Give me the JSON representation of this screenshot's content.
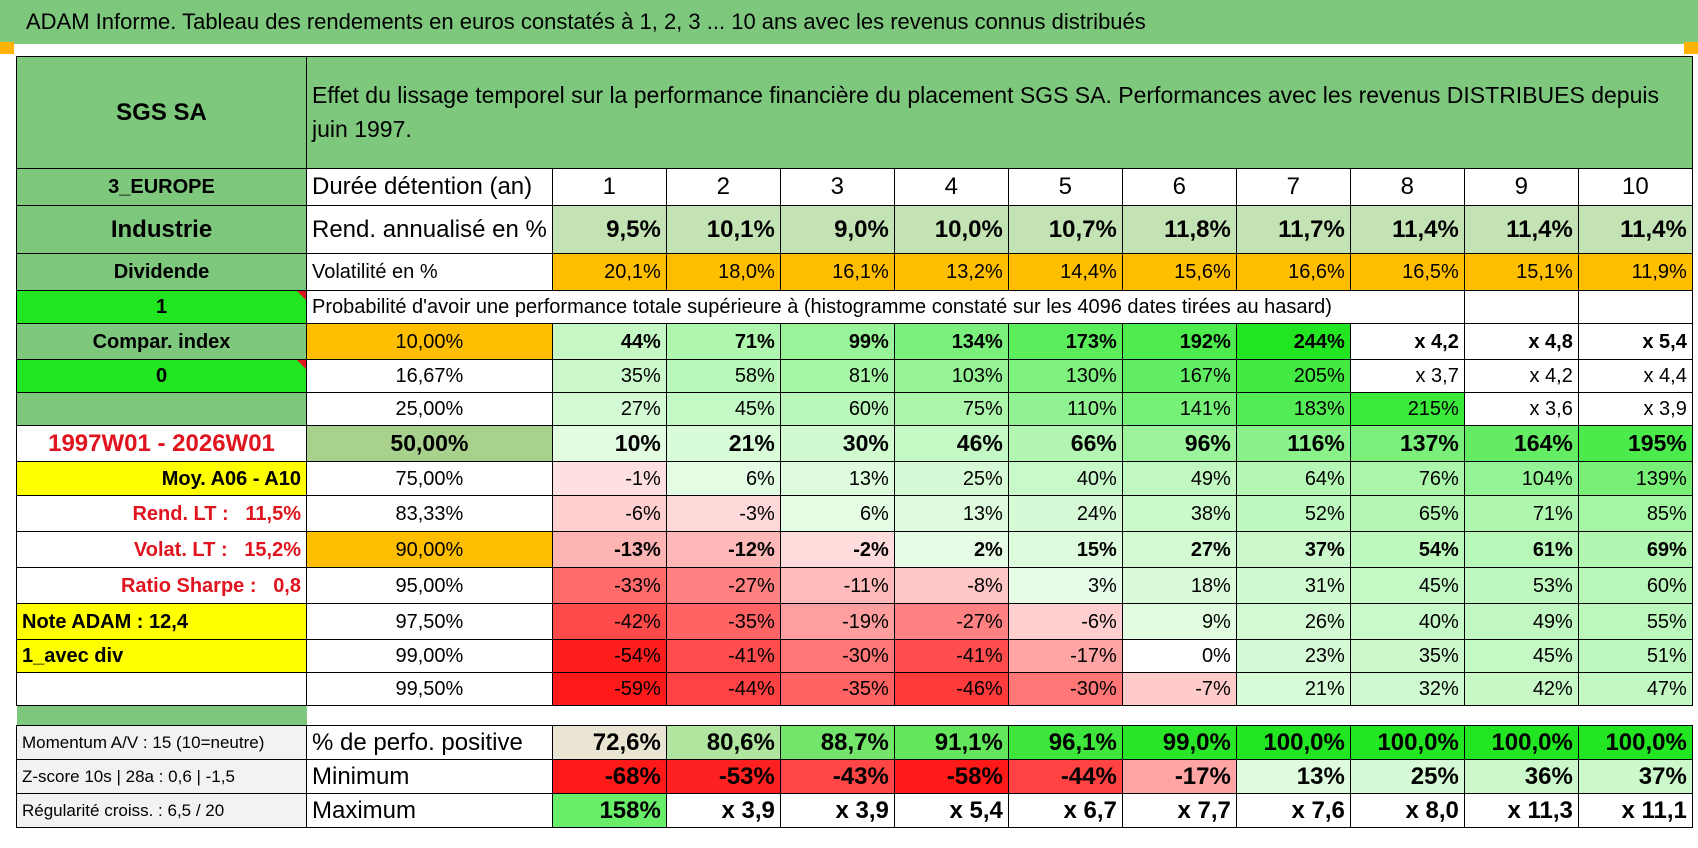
{
  "banner": {
    "title": "ADAM Informe. Tableau des rendements en euros constatés à 1, 2, 3 ... 10 ans avec les revenus connus distribués"
  },
  "colors": {
    "green_header": "#7ec87e",
    "bright_green": "#22e622",
    "yellow": "#ffff00",
    "orange": "#ffbf00",
    "red": "#ff0000"
  },
  "table": {
    "company": "SGS SA",
    "title": "Effet du lissage temporel sur la performance financière du placement SGS SA. Performances avec les revenus DISTRIBUES depuis juin 1997.",
    "region": "3_EUROPE",
    "sector": "Industrie",
    "type": "Dividende",
    "one": "1",
    "compar_index": "Compar. index",
    "zero": "0",
    "period": "1997W01 - 2026W01",
    "moy": "Moy. A06 - A10",
    "rend_lt_label": "Rend. LT :",
    "rend_lt_value": "11,5%",
    "volat_lt_label": "Volat. LT :",
    "volat_lt_value": "15,2%",
    "sharpe_label": "Ratio Sharpe :",
    "sharpe_value": "0,8",
    "note": "Note ADAM : 12,4",
    "avec_div": "1_avec div",
    "duration_label": "Durée détention (an)",
    "years": [
      "1",
      "2",
      "3",
      "4",
      "5",
      "6",
      "7",
      "8",
      "9",
      "10"
    ],
    "rend_label": "Rend. annualisé en %",
    "rend": [
      "9,5%",
      "10,1%",
      "9,0%",
      "10,0%",
      "10,7%",
      "11,8%",
      "11,7%",
      "11,4%",
      "11,4%",
      "11,4%"
    ],
    "vol_label": "Volatilité en %",
    "vol": [
      "20,1%",
      "18,0%",
      "16,1%",
      "13,2%",
      "14,4%",
      "15,6%",
      "16,6%",
      "16,5%",
      "15,1%",
      "11,9%"
    ],
    "prob_label": "Probabilité d'avoir une performance totale supérieure à (histogramme constaté sur les 4096 dates tirées au hasard)",
    "quantiles": [
      {
        "p": "10,00%",
        "v": [
          "44%",
          "71%",
          "99%",
          "134%",
          "173%",
          "192%",
          "244%",
          "x 4,2",
          "x 4,8",
          "x 5,4"
        ]
      },
      {
        "p": "16,67%",
        "v": [
          "35%",
          "58%",
          "81%",
          "103%",
          "130%",
          "167%",
          "205%",
          "x 3,7",
          "x 4,2",
          "x 4,4"
        ]
      },
      {
        "p": "25,00%",
        "v": [
          "27%",
          "45%",
          "60%",
          "75%",
          "110%",
          "141%",
          "183%",
          "215%",
          "x 3,6",
          "x 3,9"
        ]
      },
      {
        "p": "50,00%",
        "v": [
          "10%",
          "21%",
          "30%",
          "46%",
          "66%",
          "96%",
          "116%",
          "137%",
          "164%",
          "195%"
        ]
      },
      {
        "p": "75,00%",
        "v": [
          "-1%",
          "6%",
          "13%",
          "25%",
          "40%",
          "49%",
          "64%",
          "76%",
          "104%",
          "139%"
        ]
      },
      {
        "p": "83,33%",
        "v": [
          "-6%",
          "-3%",
          "6%",
          "13%",
          "24%",
          "38%",
          "52%",
          "65%",
          "71%",
          "85%"
        ]
      },
      {
        "p": "90,00%",
        "v": [
          "-13%",
          "-12%",
          "-2%",
          "2%",
          "15%",
          "27%",
          "37%",
          "54%",
          "61%",
          "69%"
        ]
      },
      {
        "p": "95,00%",
        "v": [
          "-33%",
          "-27%",
          "-11%",
          "-8%",
          "3%",
          "18%",
          "31%",
          "45%",
          "53%",
          "60%"
        ]
      },
      {
        "p": "97,50%",
        "v": [
          "-42%",
          "-35%",
          "-19%",
          "-27%",
          "-6%",
          "9%",
          "26%",
          "40%",
          "49%",
          "55%"
        ]
      },
      {
        "p": "99,00%",
        "v": [
          "-54%",
          "-41%",
          "-30%",
          "-41%",
          "-17%",
          "0%",
          "23%",
          "35%",
          "45%",
          "51%"
        ]
      },
      {
        "p": "99,50%",
        "v": [
          "-59%",
          "-44%",
          "-35%",
          "-46%",
          "-30%",
          "-7%",
          "21%",
          "32%",
          "42%",
          "47%"
        ]
      }
    ],
    "momentum": "Momentum A/V : 15 (10=neutre)",
    "zscore": "Z-score 10s | 28a : 0,6 | -1,5",
    "regularite": "Régularité croiss. : 6,5 / 20",
    "pos_label": "% de perfo. positive",
    "pos": [
      "72,6%",
      "80,6%",
      "88,7%",
      "91,1%",
      "96,1%",
      "99,0%",
      "100,0%",
      "100,0%",
      "100,0%",
      "100,0%"
    ],
    "min_label": "Minimum",
    "min": [
      "-68%",
      "-53%",
      "-43%",
      "-58%",
      "-44%",
      "-17%",
      "13%",
      "25%",
      "36%",
      "37%"
    ],
    "max_label": "Maximum",
    "max": [
      "158%",
      "x 3,9",
      "x 3,9",
      "x 5,4",
      "x 6,7",
      "x 7,7",
      "x 7,6",
      "x 8,0",
      "x 11,3",
      "x 11,1"
    ]
  }
}
